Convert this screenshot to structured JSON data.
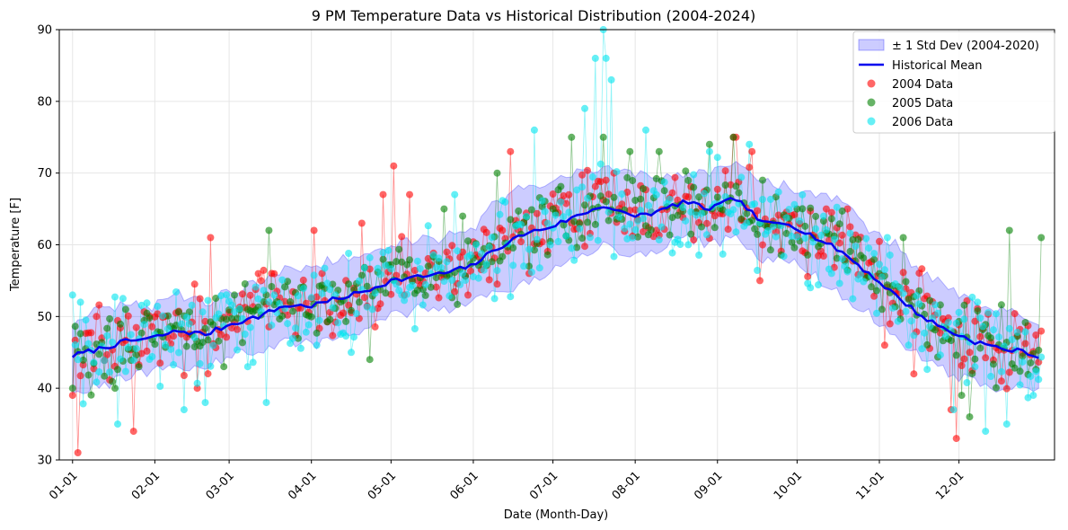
{
  "chart_data": {
    "type": "scatter",
    "title": "9 PM Temperature Data vs Historical Distribution (2004-2024)",
    "xlabel": "Date (Month-Day)",
    "ylabel": "Temperature [F]",
    "ylim": [
      30,
      90
    ],
    "yticks": [
      30,
      40,
      50,
      60,
      70,
      80,
      90
    ],
    "xlim_day": [
      -5,
      370
    ],
    "xticks": [
      {
        "label": "01-01",
        "day": 0
      },
      {
        "label": "02-01",
        "day": 31
      },
      {
        "label": "03-01",
        "day": 59
      },
      {
        "label": "04-01",
        "day": 90
      },
      {
        "label": "05-01",
        "day": 120
      },
      {
        "label": "06-01",
        "day": 151
      },
      {
        "label": "07-01",
        "day": 181
      },
      {
        "label": "08-01",
        "day": 212
      },
      {
        "label": "09-01",
        "day": 243
      },
      {
        "label": "10-01",
        "day": 273
      },
      {
        "label": "11-01",
        "day": 304
      },
      {
        "label": "12-01",
        "day": 334
      }
    ],
    "grid": true,
    "legend_position": "top-right",
    "legend": {
      "band": "± 1 Std Dev (2004-2020)",
      "mean": "Historical Mean",
      "s2004": "2004 Data",
      "s2005": "2005 Data",
      "s2006": "2006 Data"
    },
    "historical_mean": {
      "name": "Historical Mean",
      "color": "#0000ee",
      "day": [
        0,
        10,
        20,
        30,
        40,
        50,
        60,
        70,
        80,
        90,
        100,
        110,
        120,
        130,
        140,
        150,
        160,
        170,
        180,
        190,
        200,
        210,
        220,
        230,
        240,
        250,
        260,
        270,
        280,
        290,
        300,
        310,
        320,
        330,
        340,
        350,
        360,
        365
      ],
      "values": [
        44.5,
        45.5,
        46.5,
        47,
        48,
        47.5,
        49,
        50,
        51.5,
        51.5,
        52.5,
        53.5,
        55,
        55.5,
        56,
        57,
        59.5,
        61.5,
        62.5,
        64,
        65.5,
        64,
        64.5,
        66,
        65,
        66.5,
        63,
        63,
        61,
        59,
        56,
        53,
        50,
        48,
        46.5,
        45.5,
        45,
        44
      ]
    },
    "std_band": {
      "name": "± 1 Std Dev (2004-2020)",
      "color": "#0000ff",
      "day": [
        0,
        10,
        20,
        30,
        40,
        50,
        60,
        70,
        80,
        90,
        100,
        110,
        120,
        130,
        140,
        150,
        160,
        170,
        180,
        190,
        200,
        210,
        220,
        230,
        240,
        250,
        260,
        270,
        280,
        290,
        300,
        310,
        320,
        330,
        340,
        350,
        360,
        365
      ],
      "upper": [
        49,
        51,
        51.5,
        51.5,
        53,
        52,
        53.5,
        55,
        56.5,
        57,
        58,
        58.5,
        60,
        60.5,
        61,
        62,
        66,
        68,
        69,
        70,
        71,
        70,
        69,
        70,
        70,
        71,
        69,
        68,
        67,
        66,
        62,
        60,
        56,
        54,
        52,
        51,
        50,
        49
      ],
      "lower": [
        40,
        40,
        41.5,
        42.5,
        43,
        43,
        44.5,
        45,
        46.5,
        46,
        47,
        48.5,
        50,
        51,
        51,
        52,
        53,
        55,
        56,
        58,
        60,
        58,
        59.5,
        61,
        60,
        61,
        58,
        58,
        55.5,
        53,
        50.5,
        47,
        44,
        42,
        41,
        40,
        40,
        39
      ]
    },
    "series": [
      {
        "name": "2004 Data",
        "color": "#ff0000",
        "seed": 2004,
        "offset": 0.2,
        "noise": 4.0,
        "x": [
          0,
          2,
          9,
          23,
          47,
          52,
          75,
          91,
          109,
          117,
          121,
          127,
          165,
          172,
          201,
          204,
          249,
          250,
          256,
          259,
          284,
          292,
          306,
          317,
          331,
          333,
          350
        ],
        "y": [
          39,
          31,
          50,
          34,
          40,
          61,
          56,
          62,
          63,
          67,
          71,
          67,
          73,
          56,
          69,
          70,
          75,
          75,
          73,
          55,
          65,
          65,
          46,
          42,
          37,
          33,
          41
        ]
      },
      {
        "name": "2005 Data",
        "color": "#008000",
        "seed": 2005,
        "offset": 0.0,
        "noise": 3.8,
        "x": [
          0,
          16,
          20,
          25,
          57,
          61,
          66,
          74,
          108,
          112,
          140,
          147,
          160,
          172,
          181,
          188,
          200,
          210,
          221,
          234,
          240,
          249,
          260,
          273,
          305,
          313,
          335,
          338,
          353,
          365
        ],
        "y": [
          40,
          40,
          51,
          43,
          43,
          53,
          51,
          62,
          52,
          44,
          65,
          64,
          70,
          57,
          65,
          75,
          75,
          73,
          73,
          68,
          74,
          75,
          69,
          65,
          51,
          61,
          39,
          36,
          62,
          61
        ]
      },
      {
        "name": "2006 Data",
        "color": "#00e5ee",
        "seed": 2006,
        "offset": -0.3,
        "noise": 5.0,
        "x": [
          0,
          3,
          17,
          42,
          50,
          66,
          73,
          92,
          105,
          113,
          124,
          144,
          152,
          174,
          193,
          197,
          200,
          201,
          203,
          216,
          240,
          255,
          286,
          307,
          332,
          344,
          352,
          362
        ],
        "y": [
          53,
          52,
          35,
          37,
          38,
          43,
          38,
          46,
          45,
          51,
          53,
          67,
          60,
          76,
          79,
          86,
          90,
          86,
          83,
          76,
          73,
          74,
          56,
          61,
          37,
          34,
          35,
          39
        ]
      }
    ]
  }
}
